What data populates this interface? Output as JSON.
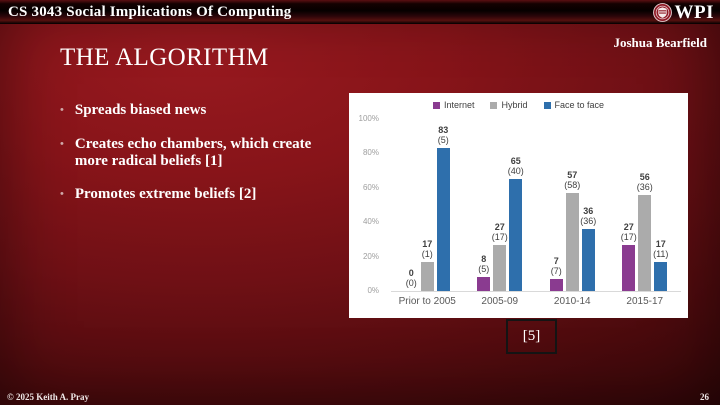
{
  "header": {
    "course_title": "CS 3043 Social Implications Of Computing",
    "logo_text": "WPI"
  },
  "author": "Joshua Bearfield",
  "slide": {
    "title": "THE ALGORITHM",
    "bullets": [
      "Spreads biased news",
      "Creates echo chambers, which create more radical beliefs [1]",
      "Promotes extreme beliefs [2]"
    ],
    "citation": "[5]"
  },
  "footer": {
    "copyright": "© 2025 Keith A. Pray",
    "page_number": "26"
  },
  "colors": {
    "background_bright": "#8e161b",
    "background_dark": "#1e0304",
    "header_bar": "#000000",
    "chart_background": "#ffffff",
    "internet": "#8a3b90",
    "hybrid": "#ababab",
    "face_to_face": "#2e6fac",
    "axis_label": "#9e9e9e",
    "category_label": "#595959",
    "value_label": "#3f3f3f"
  },
  "chart_data": {
    "type": "bar",
    "title": "",
    "xlabel": "",
    "ylabel": "",
    "categories": [
      "Prior to 2005",
      "2005-09",
      "2010-14",
      "2015-17"
    ],
    "series": [
      {
        "name": "Internet",
        "color": "#8a3b90",
        "values": [
          0,
          8,
          7,
          27
        ],
        "counts": [
          0,
          5,
          7,
          17
        ]
      },
      {
        "name": "Hybrid",
        "color": "#ababab",
        "values": [
          17,
          27,
          57,
          56
        ],
        "counts": [
          1,
          17,
          58,
          36
        ]
      },
      {
        "name": "Face to face",
        "color": "#2e6fac",
        "values": [
          83,
          65,
          36,
          17
        ],
        "counts": [
          5,
          40,
          36,
          11
        ]
      }
    ],
    "y_ticks": [
      "0%",
      "20%",
      "40%",
      "60%",
      "80%",
      "100%"
    ],
    "ylim": [
      0,
      100
    ],
    "grid": false,
    "legend_position": "top"
  }
}
